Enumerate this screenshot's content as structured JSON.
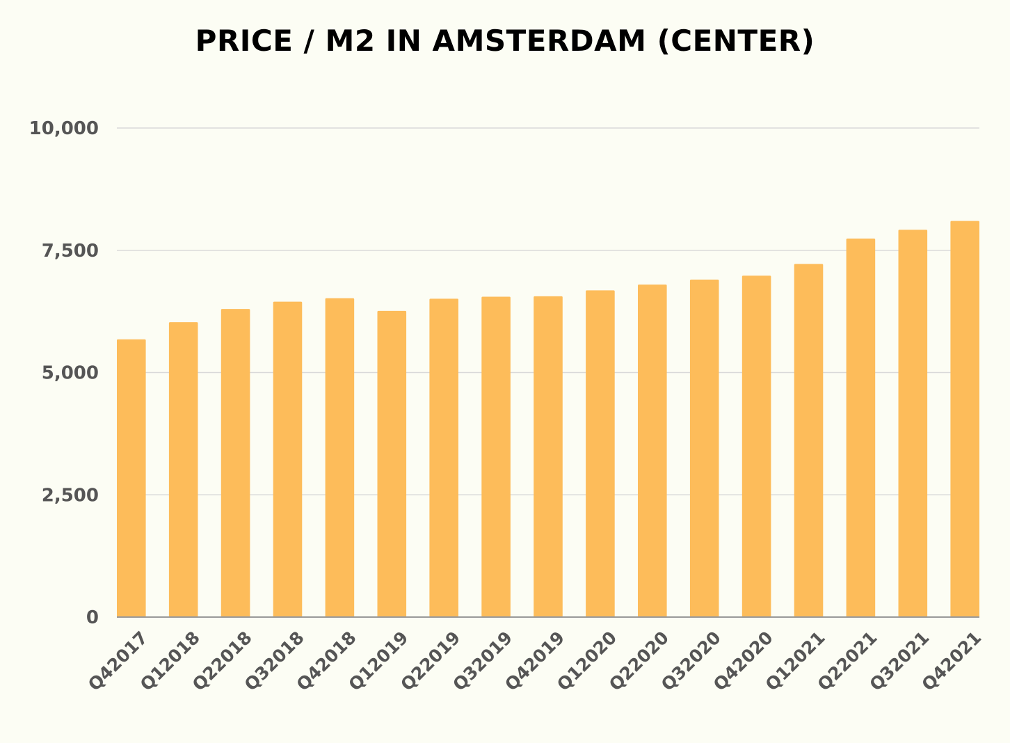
{
  "chart_data": {
    "type": "bar",
    "title": "PRICE / M2 IN AMSTERDAM (CENTER)",
    "xlabel": "",
    "ylabel": "",
    "ylim": [
      0,
      10000
    ],
    "yticks": [
      0,
      2500,
      5000,
      7500,
      10000
    ],
    "ytick_labels": [
      "0",
      "2,500",
      "5,000",
      "7,500",
      "10,000"
    ],
    "grid": true,
    "legend": "none",
    "colors": {
      "bar": "#fdbc5a",
      "grid": "#d9d9d9",
      "axis": "#999999",
      "label": "#555555",
      "background": "#fcfdf4"
    },
    "categories": [
      "Q42017",
      "Q12018",
      "Q22018",
      "Q32018",
      "Q42018",
      "Q12019",
      "Q22019",
      "Q32019",
      "Q42019",
      "Q12020",
      "Q22020",
      "Q32020",
      "Q42020",
      "Q12021",
      "Q22021",
      "Q32021",
      "Q42021"
    ],
    "values": [
      5680,
      6030,
      6300,
      6450,
      6520,
      6260,
      6510,
      6550,
      6560,
      6680,
      6800,
      6900,
      6980,
      7220,
      7740,
      7920,
      8100
    ]
  }
}
